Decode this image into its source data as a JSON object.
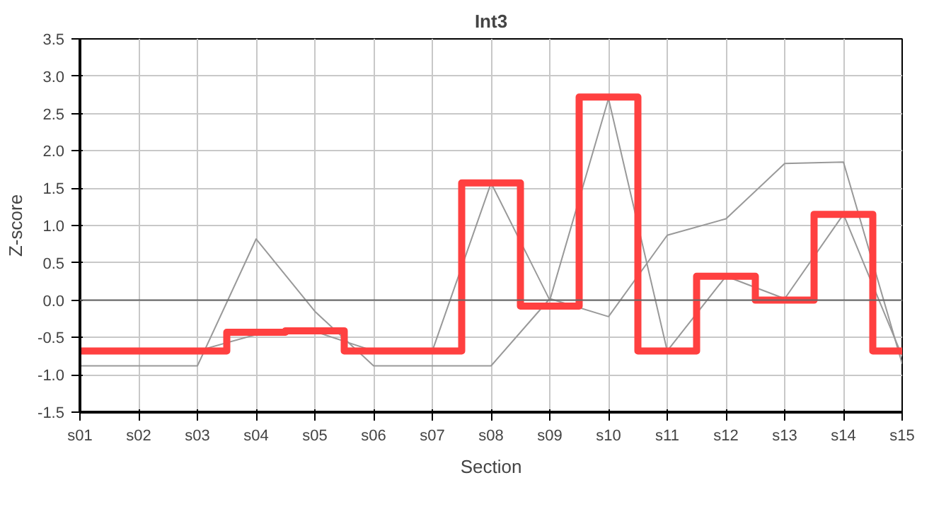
{
  "chart_data": {
    "type": "line",
    "title": "Int3",
    "xlabel": "Section",
    "ylabel": "Z-score",
    "categories": [
      "s01",
      "s02",
      "s03",
      "s04",
      "s05",
      "s06",
      "s07",
      "s08",
      "s09",
      "s10",
      "s11",
      "s12",
      "s13",
      "s14",
      "s15"
    ],
    "series": [
      {
        "color": "#999999",
        "values": [
          -0.88,
          -0.88,
          -0.88,
          0.82,
          -0.15,
          -0.88,
          -0.88,
          -0.88,
          0.02,
          -0.22,
          0.87,
          1.09,
          1.83,
          1.85,
          -0.85
        ]
      },
      {
        "color": "#999999",
        "values": [
          null,
          -0.68,
          -0.68,
          -0.46,
          -0.42,
          -0.68,
          -0.68,
          1.57,
          0.0,
          2.7,
          -0.68,
          0.32,
          0.02,
          1.15,
          -0.75
        ]
      },
      {
        "type": "step",
        "color": "#ff4040",
        "values": [
          -0.68,
          -0.68,
          -0.68,
          -0.43,
          -0.41,
          -0.68,
          -0.68,
          1.57,
          -0.08,
          2.72,
          -0.68,
          0.32,
          0.0,
          1.15,
          -0.68
        ]
      }
    ],
    "ylim": [
      -1.5,
      3.5
    ],
    "yticks": [
      {
        "value": -1.5,
        "label": "-1.5"
      },
      {
        "value": -1.0,
        "label": "-1.0"
      },
      {
        "value": -0.5,
        "label": "-0.5"
      },
      {
        "value": 0,
        "label": "0.0"
      },
      {
        "value": 0.5,
        "label": "0.5"
      },
      {
        "value": 1.0,
        "label": "1.0"
      },
      {
        "value": 1.5,
        "label": "1.5"
      },
      {
        "value": 2.0,
        "label": "2.0"
      },
      {
        "value": 2.5,
        "label": "2.5"
      },
      {
        "value": 3.0,
        "label": "3.0"
      },
      {
        "value": 3.5,
        "label": "3.5"
      }
    ],
    "ref_lines": [
      {
        "axis": "y",
        "value": 0,
        "color": "#666666"
      }
    ],
    "grid": true
  }
}
